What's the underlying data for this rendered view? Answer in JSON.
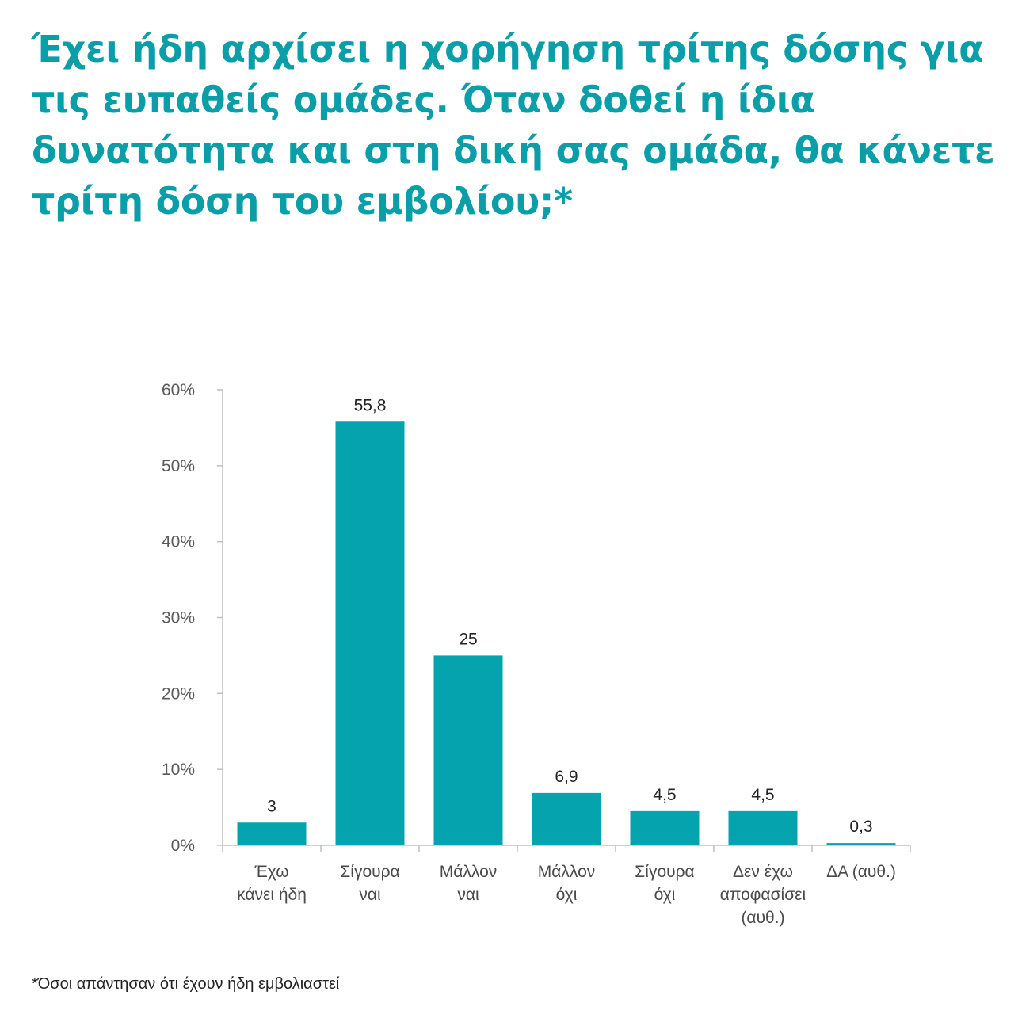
{
  "title": "Έχει ήδη αρχίσει η χορήγηση τρίτης δόσης για τις ευπαθείς ομάδες. Όταν δοθεί η ίδια δυνατότητα και στη δική σας ομάδα, θα κάνετε τρίτη δόση του εμβολίου;*",
  "footnote": "*Όσοι απάντησαν ότι έχουν ήδη εμβολιαστεί",
  "colors": {
    "bar": "#05a3ae",
    "title": "#0a9ea9",
    "axis": "#bfbfbf"
  },
  "chart_data": {
    "type": "bar",
    "categories": [
      [
        "Έχω",
        "κάνει ήδη"
      ],
      [
        "Σίγουρα",
        "ναι"
      ],
      [
        "Μάλλον",
        "ναι"
      ],
      [
        "Μάλλον",
        "όχι"
      ],
      [
        "Σίγουρα",
        "όχι"
      ],
      [
        "Δεν έχω",
        "αποφασίσει",
        "(αυθ.)"
      ],
      [
        "ΔΑ (αυθ.)"
      ]
    ],
    "values": [
      3,
      55.8,
      25,
      6.9,
      4.5,
      4.5,
      0.3
    ],
    "value_labels": [
      "3",
      "55,8",
      "25",
      "6,9",
      "4,5",
      "4,5",
      "0,3"
    ],
    "ylim": [
      0,
      60
    ],
    "yticks": [
      0,
      10,
      20,
      30,
      40,
      50,
      60
    ],
    "ytick_labels": [
      "0%",
      "10%",
      "20%",
      "30%",
      "40%",
      "50%",
      "60%"
    ],
    "xlabel": "",
    "ylabel": "",
    "grid": false,
    "legend": "none"
  }
}
